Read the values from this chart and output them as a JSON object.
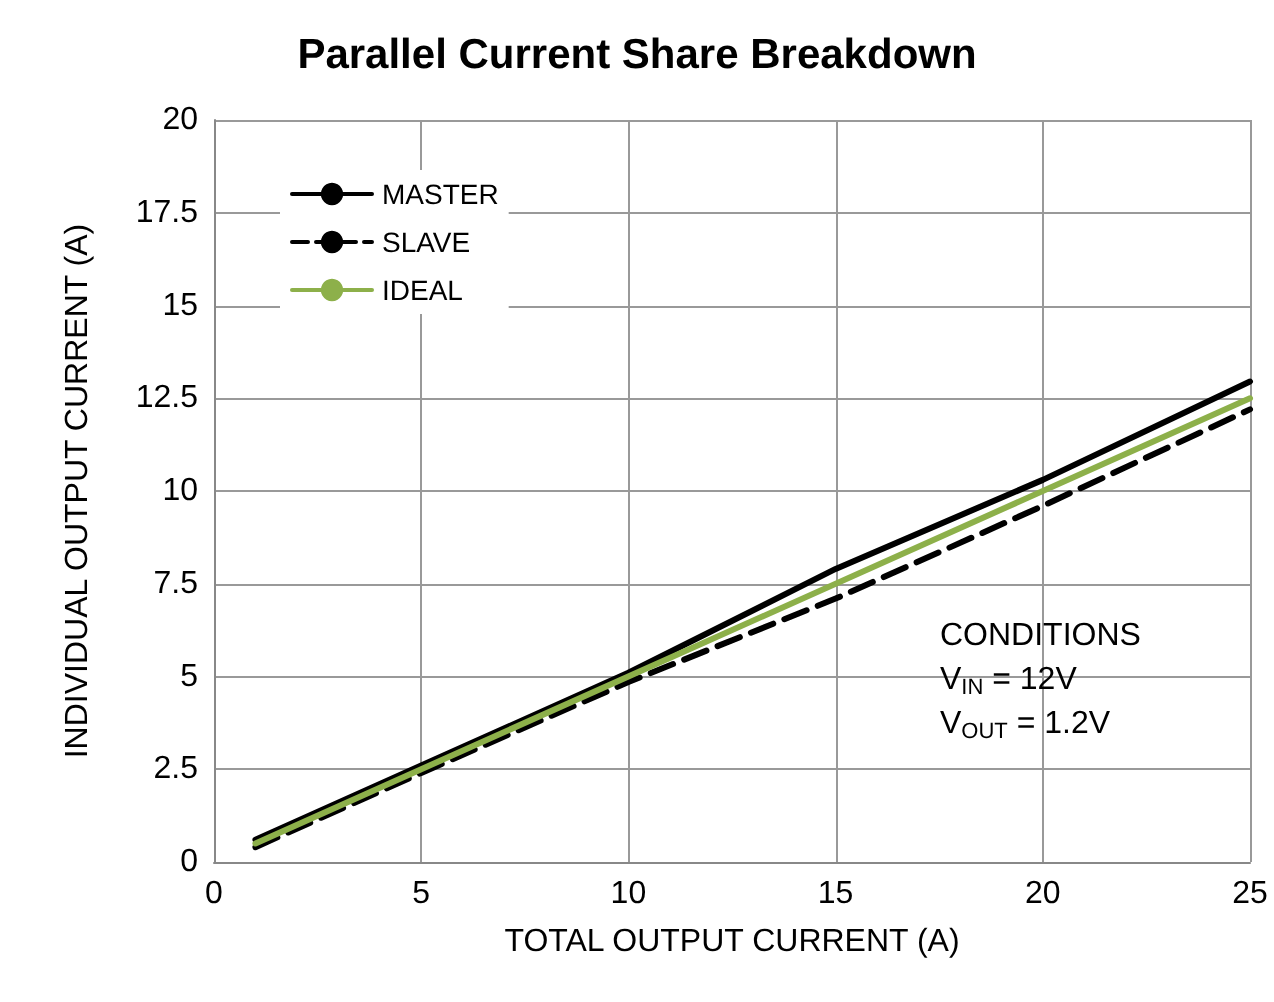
{
  "chart_data": {
    "type": "line",
    "title": "Parallel Current Share Breakdown",
    "xlabel": "TOTAL OUTPUT CURRENT (A)",
    "ylabel": "INDIVIDUAL OUTPUT CURRENT (A)",
    "xlim": [
      0,
      25
    ],
    "xticks": [
      0,
      5,
      10,
      15,
      20,
      25
    ],
    "ylim": [
      0,
      20
    ],
    "yticks": [
      0,
      2.5,
      5,
      7.5,
      10,
      12.5,
      15,
      17.5,
      20
    ],
    "grid": true,
    "legend": "top left",
    "marker": "none",
    "series": [
      {
        "name": "MASTER",
        "color": "#000000",
        "line_style": "solid",
        "x": [
          1,
          5,
          10,
          15,
          20,
          25
        ],
        "values": [
          0.6,
          2.6,
          5.1,
          7.9,
          10.3,
          12.95
        ]
      },
      {
        "name": "SLAVE",
        "color": "#000000",
        "line_style": "dashed",
        "x": [
          1,
          5,
          10,
          15,
          20,
          25
        ],
        "values": [
          0.4,
          2.4,
          4.85,
          7.1,
          9.6,
          12.2
        ]
      },
      {
        "name": "IDEAL",
        "color": "#8db04a",
        "line_style": "solid",
        "x": [
          1,
          25
        ],
        "values": [
          0.5,
          12.5
        ]
      }
    ],
    "annotations": [
      "CONDITIONS",
      "V$_{IN}$ = 12V",
      "V$_{OUT}$ = 1.2V"
    ]
  }
}
